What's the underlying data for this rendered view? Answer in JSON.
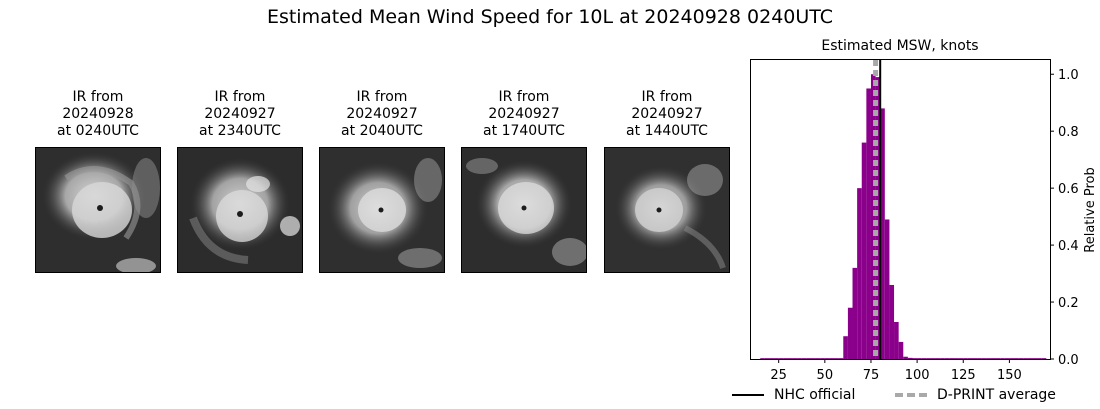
{
  "figure": {
    "suptitle": "Estimated Mean Wind Speed for 10L at 20240928 0240UTC"
  },
  "panels": [
    {
      "line1": "IR from",
      "line2": "20240928",
      "line3": "at 0240UTC"
    },
    {
      "line1": "IR from",
      "line2": "20240927",
      "line3": "at 2340UTC"
    },
    {
      "line1": "IR from",
      "line2": "20240927",
      "line3": "at 2040UTC"
    },
    {
      "line1": "IR from",
      "line2": "20240927",
      "line3": "at 1740UTC"
    },
    {
      "line1": "IR from",
      "line2": "20240927",
      "line3": "at 1440UTC"
    }
  ],
  "chart_data": {
    "type": "bar",
    "title": "Estimated MSW, knots",
    "xlabel": "",
    "ylabel": "Relative Prob",
    "xlim": [
      10,
      172
    ],
    "ylim": [
      0,
      1.05
    ],
    "xticks": [
      25,
      50,
      75,
      100,
      125,
      150
    ],
    "yticks": [
      0.0,
      0.2,
      0.4,
      0.6,
      0.8,
      1.0
    ],
    "bin_width": 2.5,
    "bin_starts": [
      15,
      17.5,
      20,
      22.5,
      25,
      27.5,
      30,
      32.5,
      35,
      37.5,
      40,
      42.5,
      45,
      47.5,
      50,
      52.5,
      55,
      57.5,
      60,
      62.5,
      65,
      67.5,
      70,
      72.5,
      75,
      77.5,
      80,
      82.5,
      85,
      87.5,
      90,
      92.5,
      95,
      97.5,
      100,
      102.5,
      105,
      107.5,
      110,
      112.5,
      115,
      117.5,
      120,
      122.5,
      125,
      127.5,
      130,
      132.5,
      135,
      137.5,
      140,
      142.5,
      145,
      147.5,
      150,
      152.5,
      155,
      157.5,
      160,
      162.5,
      165,
      167.5
    ],
    "values": [
      0.003,
      0.003,
      0.003,
      0.003,
      0.003,
      0.003,
      0.003,
      0.003,
      0.003,
      0.003,
      0.003,
      0.003,
      0.003,
      0.003,
      0.003,
      0.003,
      0.003,
      0.003,
      0.08,
      0.18,
      0.32,
      0.6,
      0.76,
      0.95,
      1.0,
      0.99,
      0.88,
      0.49,
      0.26,
      0.13,
      0.06,
      0.008,
      0.004,
      0.003,
      0.003,
      0.003,
      0.003,
      0.003,
      0.003,
      0.003,
      0.003,
      0.003,
      0.003,
      0.003,
      0.003,
      0.003,
      0.003,
      0.003,
      0.003,
      0.003,
      0.003,
      0.003,
      0.003,
      0.003,
      0.003,
      0.003,
      0.003,
      0.003,
      0.003,
      0.003,
      0.003,
      0.003
    ],
    "bar_color": "#8b008b",
    "lines": [
      {
        "name": "NHC official",
        "x": 80,
        "color": "#000000",
        "style": "solid"
      },
      {
        "name": "D-PRINT average",
        "x": 77.5,
        "color": "#a9a9a9",
        "style": "dashed"
      }
    ],
    "legend_position": "bottom"
  }
}
